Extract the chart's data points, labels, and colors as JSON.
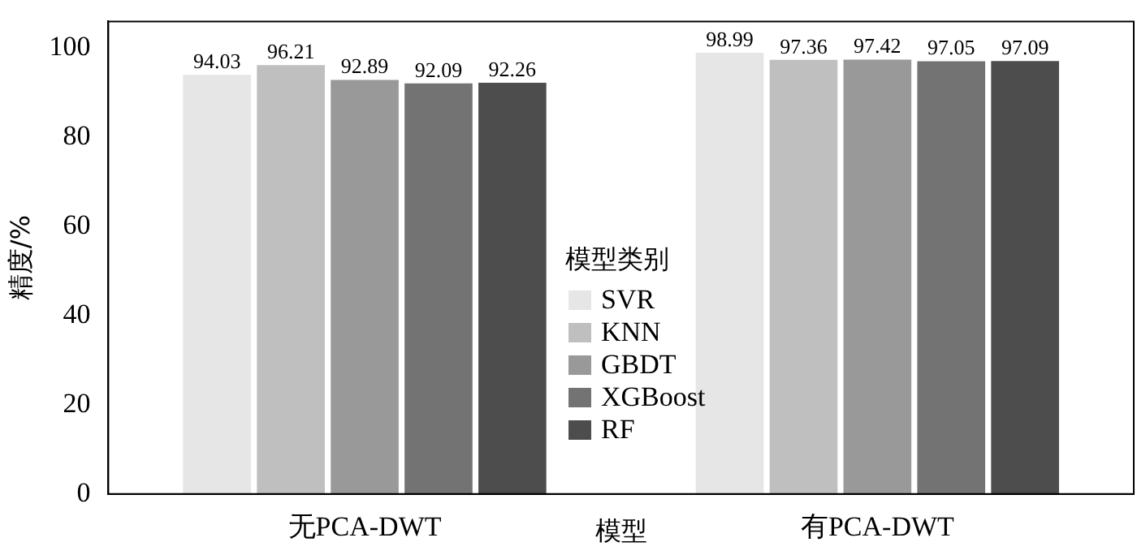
{
  "chart_data": {
    "type": "bar",
    "xlabel": "模型",
    "ylabel": "精度/%",
    "legend_title": "模型类别",
    "legend": "center",
    "categories": [
      "无PCA-DWT",
      "有PCA-DWT"
    ],
    "series": [
      {
        "name": "SVR",
        "color": "#e6e6e6",
        "values": [
          94.03,
          98.99
        ]
      },
      {
        "name": "KNN",
        "color": "#bfbfbf",
        "values": [
          96.21,
          97.36
        ]
      },
      {
        "name": "GBDT",
        "color": "#999999",
        "values": [
          92.89,
          97.42
        ]
      },
      {
        "name": "XGBoost",
        "color": "#737373",
        "values": [
          92.09,
          97.05
        ]
      },
      {
        "name": "RF",
        "color": "#4d4d4d",
        "values": [
          92.26,
          97.09
        ]
      }
    ],
    "data_labels": true,
    "ylim": [
      0,
      106
    ],
    "yticks": [
      0,
      20,
      40,
      60,
      80,
      100
    ],
    "grid": false
  }
}
